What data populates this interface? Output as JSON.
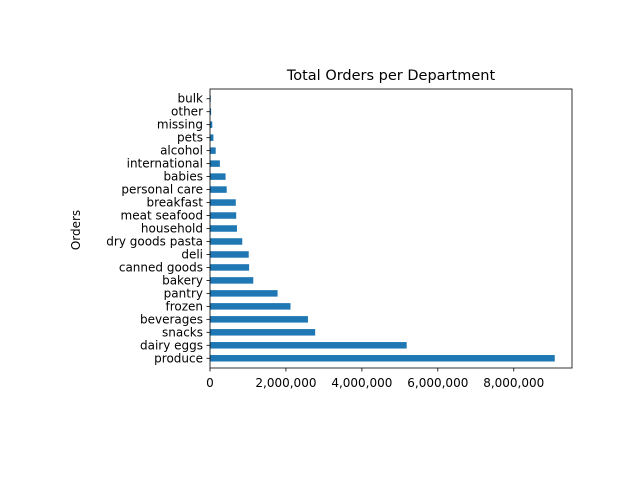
{
  "chart_data": {
    "type": "bar",
    "orientation": "horizontal",
    "title": "Total Orders per Department",
    "xlabel": "",
    "ylabel": "Orders",
    "categories": [
      "produce",
      "dairy eggs",
      "snacks",
      "beverages",
      "frozen",
      "pantry",
      "bakery",
      "canned goods",
      "deli",
      "dry goods pasta",
      "household",
      "meat seafood",
      "breakfast",
      "personal care",
      "babies",
      "international",
      "alcohol",
      "pets",
      "missing",
      "other",
      "bulk"
    ],
    "values": [
      9080000,
      5180000,
      2770000,
      2580000,
      2120000,
      1780000,
      1140000,
      1030000,
      1020000,
      850000,
      710000,
      690000,
      680000,
      440000,
      410000,
      260000,
      150000,
      90000,
      60000,
      30000,
      20000
    ],
    "xlim": [
      0,
      9534000
    ],
    "xticks": [
      0,
      2000000,
      4000000,
      6000000,
      8000000
    ],
    "xtick_labels": [
      "0",
      "2,000,000",
      "4,000,000",
      "6,000,000",
      "8,000,000"
    ],
    "grid": false,
    "colors": {
      "bar": "#1f77b4",
      "axis": "#000000",
      "background": "#ffffff"
    }
  }
}
